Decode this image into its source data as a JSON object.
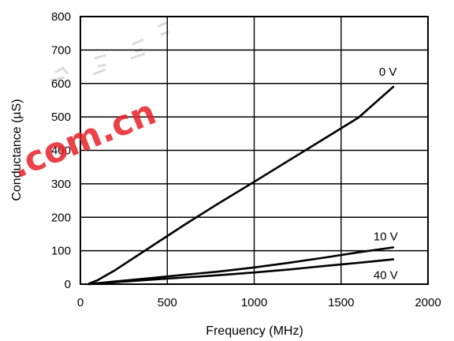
{
  "chart_data": {
    "type": "line",
    "title": "",
    "xlabel": "Frequency (MHz)",
    "ylabel": "Conductance (µS)",
    "xlim": [
      0,
      2000
    ],
    "ylim": [
      0,
      800
    ],
    "grid": true,
    "xticks": [
      0,
      500,
      1000,
      1500,
      2000
    ],
    "yticks": [
      0,
      100,
      200,
      300,
      400,
      500,
      600,
      700,
      800
    ],
    "series": [
      {
        "name": "0 V",
        "x": [
          50,
          100,
          200,
          400,
          600,
          800,
          1000,
          1200,
          1400,
          1600,
          1800
        ],
        "y": [
          2,
          12,
          42,
          110,
          178,
          243,
          306,
          370,
          434,
          498,
          590
        ]
      },
      {
        "name": "10 V",
        "x": [
          50,
          100,
          200,
          400,
          600,
          800,
          1000,
          1200,
          1400,
          1600,
          1800
        ],
        "y": [
          0,
          3,
          8,
          18,
          28,
          38,
          50,
          64,
          79,
          95,
          110
        ]
      },
      {
        "name": "40 V",
        "x": [
          50,
          100,
          200,
          400,
          600,
          800,
          1000,
          1200,
          1400,
          1600,
          1800
        ],
        "y": [
          0,
          2,
          6,
          13,
          20,
          27,
          35,
          44,
          54,
          64,
          74
        ]
      }
    ]
  },
  "watermark": {
    "text": ".com.cn",
    "color": "#e8202a"
  }
}
